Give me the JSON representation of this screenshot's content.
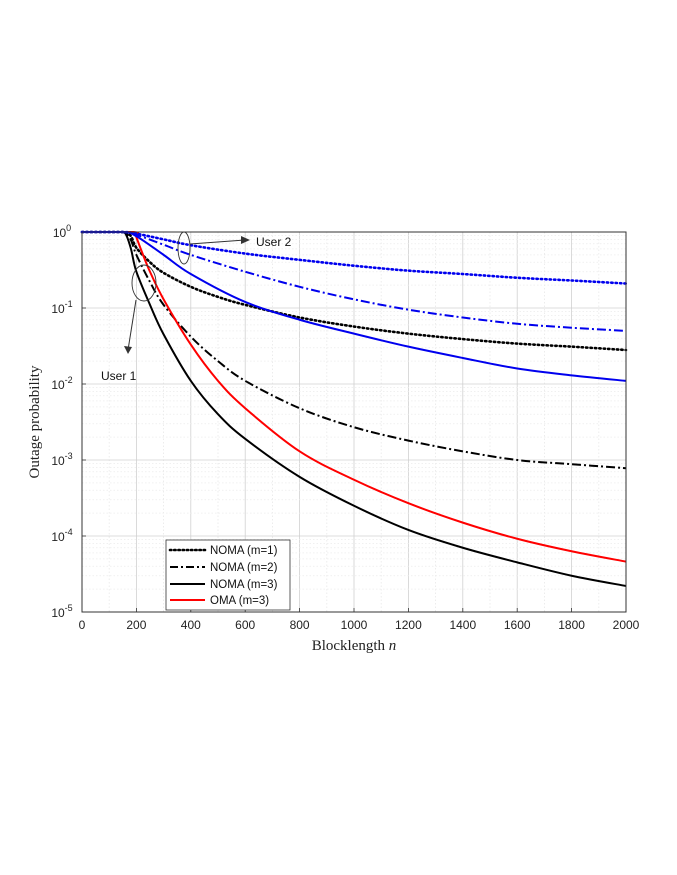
{
  "chart_data": {
    "type": "line",
    "xlabel": "Blocklength",
    "xlabel_var": "n",
    "ylabel": "Outage probability",
    "xlim": [
      0,
      2000
    ],
    "ylim": [
      1e-05,
      1
    ],
    "yscale": "log",
    "grid": true,
    "legend_position": "bottom-left",
    "x_ticks": [
      0,
      200,
      400,
      600,
      800,
      1000,
      1200,
      1400,
      1600,
      1800,
      2000
    ],
    "y_ticks": [
      {
        "value": 1,
        "base": "10",
        "exp": "0"
      },
      {
        "value": 0.1,
        "base": "10",
        "exp": "-1"
      },
      {
        "value": 0.01,
        "base": "10",
        "exp": "-2"
      },
      {
        "value": 0.001,
        "base": "10",
        "exp": "-3"
      },
      {
        "value": 0.0001,
        "base": "10",
        "exp": "-4"
      },
      {
        "value": 1e-05,
        "base": "10",
        "exp": "-5"
      }
    ],
    "annotations": [
      {
        "id": "user1",
        "text": "User 1"
      },
      {
        "id": "user2",
        "text": "User 2"
      }
    ],
    "series": [
      {
        "name": "NOMA (m=1)",
        "group": "User 1",
        "color": "#000000",
        "style": "dotted",
        "x": [
          0,
          140,
          160,
          180,
          200,
          250,
          300,
          400,
          500,
          600,
          800,
          1000,
          1200,
          1400,
          1600,
          1800,
          2000
        ],
        "y": [
          1,
          1,
          0.98,
          0.88,
          0.62,
          0.4,
          0.29,
          0.19,
          0.14,
          0.11,
          0.075,
          0.057,
          0.046,
          0.039,
          0.034,
          0.031,
          0.028
        ]
      },
      {
        "name": "NOMA (m=2)",
        "group": "User 1",
        "color": "#000000",
        "style": "dashdot",
        "x": [
          0,
          140,
          160,
          180,
          200,
          250,
          300,
          400,
          500,
          600,
          800,
          1000,
          1200,
          1400,
          1600,
          1800,
          2000
        ],
        "y": [
          1,
          1,
          0.97,
          0.78,
          0.5,
          0.22,
          0.11,
          0.042,
          0.02,
          0.011,
          0.0048,
          0.0027,
          0.0018,
          0.0013,
          0.001,
          0.00088,
          0.00078
        ]
      },
      {
        "name": "NOMA (m=3)",
        "group": "User 1",
        "color": "#000000",
        "style": "solid",
        "x": [
          0,
          140,
          160,
          180,
          200,
          250,
          300,
          400,
          500,
          600,
          800,
          1000,
          1200,
          1400,
          1600,
          1800,
          2000
        ],
        "y": [
          1,
          1,
          0.95,
          0.6,
          0.3,
          0.11,
          0.045,
          0.011,
          0.004,
          0.0019,
          0.0006,
          0.00025,
          0.00012,
          7e-05,
          4.5e-05,
          3e-05,
          2.2e-05
        ]
      },
      {
        "name": "OMA (m=3)",
        "group": "User 1",
        "color": "#ff0000",
        "style": "solid",
        "x": [
          0,
          190,
          200,
          220,
          250,
          300,
          400,
          500,
          600,
          800,
          1000,
          1200,
          1400,
          1600,
          1800,
          2000
        ],
        "y": [
          1,
          1,
          0.85,
          0.55,
          0.3,
          0.13,
          0.033,
          0.011,
          0.0048,
          0.0013,
          0.00055,
          0.00027,
          0.00015,
          9.2e-05,
          6.3e-05,
          4.6e-05
        ]
      },
      {
        "group": "User 2",
        "color": "#0000ee",
        "style": "dotted",
        "x": [
          0,
          150,
          200,
          300,
          400,
          600,
          800,
          1000,
          1200,
          1400,
          1600,
          1800,
          2000
        ],
        "y": [
          1,
          1,
          0.95,
          0.8,
          0.67,
          0.52,
          0.43,
          0.36,
          0.31,
          0.28,
          0.25,
          0.23,
          0.21
        ]
      },
      {
        "group": "User 2",
        "color": "#0000ee",
        "style": "dashdot",
        "x": [
          0,
          150,
          200,
          300,
          400,
          600,
          800,
          1000,
          1200,
          1400,
          1600,
          1800,
          2000
        ],
        "y": [
          1,
          1,
          0.92,
          0.68,
          0.5,
          0.3,
          0.19,
          0.13,
          0.095,
          0.075,
          0.062,
          0.055,
          0.05
        ]
      },
      {
        "group": "User 2",
        "color": "#0000ee",
        "style": "solid",
        "x": [
          0,
          150,
          200,
          300,
          400,
          600,
          800,
          1000,
          1200,
          1400,
          1600,
          1800,
          2000
        ],
        "y": [
          1,
          1,
          0.88,
          0.5,
          0.28,
          0.12,
          0.07,
          0.046,
          0.031,
          0.022,
          0.016,
          0.013,
          0.011
        ]
      }
    ]
  }
}
